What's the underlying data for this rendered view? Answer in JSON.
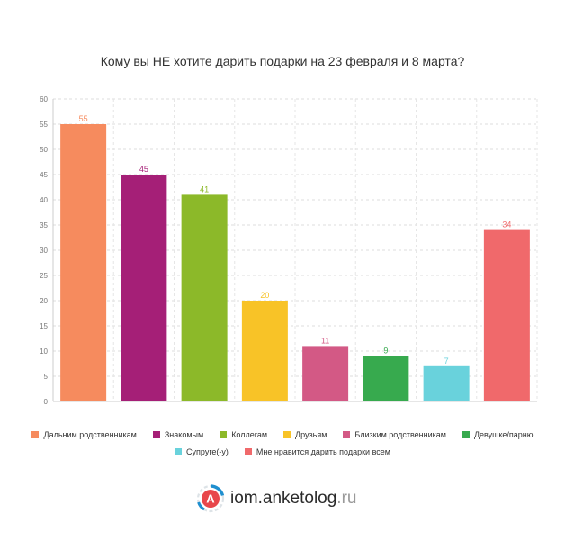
{
  "chart_data": {
    "type": "bar",
    "title": "Кому вы НЕ хотите дарить подарки на 23 февраля и 8 марта?",
    "categories": [
      "Дальним родственникам",
      "Знакомым",
      "Коллегам",
      "Друзьям",
      "Близким родственникам",
      "Девушке/парню",
      "Супруге(-у)",
      "Мне нравится дарить подарки всем"
    ],
    "values": [
      55,
      45,
      41,
      20,
      11,
      9,
      7,
      34
    ],
    "colors": [
      "#f68b5e",
      "#a51f77",
      "#8cb929",
      "#f8c327",
      "#d35985",
      "#37aa4e",
      "#69d2dc",
      "#f0696b"
    ],
    "ylim": [
      0,
      60
    ],
    "yticks": [
      0,
      5,
      10,
      15,
      20,
      25,
      30,
      35,
      40,
      45,
      50,
      55,
      60
    ],
    "grid": true,
    "legend_position": "bottom"
  },
  "brand": {
    "name": "iom.anketolog",
    "tld": ".ru",
    "logo_icon": "anketolog-logo-icon",
    "logo_letter": "А"
  }
}
